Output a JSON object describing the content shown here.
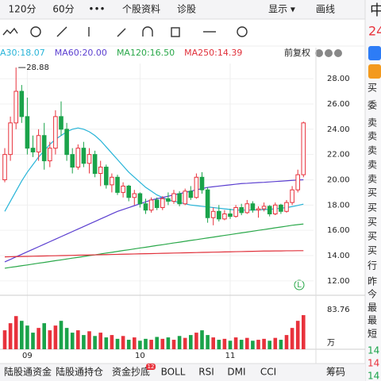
{
  "tabs": [
    "120分",
    "60分",
    "•••",
    "个股资料",
    "诊股",
    "显示 ▾",
    "画线"
  ],
  "header_right": {
    "name": "中",
    "price": "24"
  },
  "adjust": "前复权",
  "badge": "L",
  "bottom_tabs": [
    "陆股通资金",
    "陆股通持仓",
    "资金抄底",
    "BOLL",
    "RSI",
    "DMI",
    "CCI"
  ],
  "bottom_badge": "12",
  "chips": "筹码",
  "side_panel": [
    "买",
    "委",
    "卖",
    "卖",
    "卖",
    "卖",
    "卖",
    "买",
    "买",
    "买",
    "买",
    "买",
    "行",
    "昨",
    "今",
    "最",
    "最",
    "短"
  ],
  "side_prices": [
    {
      "text": "14",
      "color": "#1aa34a"
    },
    {
      "text": "14",
      "color": "#e8323c"
    },
    {
      "text": "14",
      "color": "#1aa34a"
    }
  ],
  "chart_data": {
    "type": "candlestick",
    "up_color": "#e8323c",
    "down_color": "#1aa34a",
    "categories": [
      null,
      null,
      null,
      null,
      "09",
      null,
      null,
      null,
      null,
      null,
      null,
      null,
      null,
      null,
      null,
      null,
      null,
      null,
      null,
      null,
      null,
      null,
      null,
      null,
      "10",
      null,
      null,
      null,
      null,
      null,
      null,
      null,
      null,
      null,
      null,
      null,
      null,
      null,
      null,
      null,
      "11",
      null,
      null,
      null,
      null,
      null,
      null,
      null,
      null,
      null,
      null,
      null,
      null,
      null
    ],
    "open": [
      20,
      22,
      24.5,
      27,
      25,
      22.5,
      22.2,
      23.5,
      21.5,
      22.5,
      25,
      24,
      22,
      21,
      22.5,
      21.3,
      22,
      20.5,
      21,
      19.6,
      20.2,
      19,
      19.5,
      18.6,
      18.9,
      18.1,
      17.6,
      18.4,
      17.8,
      18.5,
      18.3,
      18.9,
      18.1,
      19.1,
      18.6,
      20.2,
      19.2,
      17,
      17.5,
      16.9,
      17.3,
      17.1,
      17.8,
      17.4,
      18.1,
      17.6,
      17.7,
      17.9,
      17.3,
      18,
      17.5,
      18.2,
      19.2,
      20.4
    ],
    "high": [
      22.5,
      25,
      28.88,
      27.5,
      26.5,
      23.5,
      24,
      24.5,
      23,
      25.5,
      26.2,
      24.5,
      22.5,
      22.8,
      23,
      22.5,
      22.3,
      21.5,
      21.2,
      20.5,
      20.4,
      19.8,
      19.6,
      19.2,
      19,
      18.5,
      18.6,
      18.6,
      18.7,
      19,
      19.2,
      19.1,
      19.3,
      19.5,
      20.5,
      20.6,
      19.4,
      17.8,
      18,
      17.6,
      17.7,
      18,
      18.1,
      18.4,
      18.3,
      17.9,
      18.2,
      18,
      18.2,
      18.1,
      18.4,
      19.5,
      20.8,
      24.6
    ],
    "low": [
      19.8,
      21.5,
      24,
      24.5,
      22,
      21.8,
      21.5,
      20.8,
      21,
      22,
      23.5,
      21.5,
      20.5,
      20.8,
      21,
      20.5,
      20.2,
      19.5,
      19.3,
      19,
      18.8,
      18.6,
      18.3,
      18,
      17.8,
      17.3,
      17.4,
      17.6,
      17.6,
      18,
      18.1,
      17.9,
      18,
      18.4,
      18.5,
      18.9,
      16.6,
      16.4,
      16.7,
      16.8,
      16.9,
      17,
      17.2,
      17.3,
      17.4,
      17,
      17.5,
      17.1,
      17.2,
      17.3,
      17.4,
      18,
      19,
      20.2
    ],
    "close": [
      22,
      24.5,
      27,
      25,
      22.5,
      22.2,
      23.5,
      21.5,
      22.5,
      25,
      24,
      22,
      21,
      22.5,
      21.3,
      22,
      20.5,
      21,
      19.6,
      20.2,
      19,
      19.5,
      18.6,
      18.9,
      18.1,
      17.6,
      18.4,
      17.8,
      18.5,
      18.3,
      18.9,
      18.1,
      19.1,
      18.6,
      20.2,
      19.2,
      17,
      17.5,
      16.9,
      17.3,
      17.1,
      17.8,
      17.4,
      18.1,
      17.6,
      17.7,
      17.9,
      17.3,
      18,
      17.5,
      18.2,
      19.2,
      20.4,
      24.5
    ],
    "peak_annotation": {
      "index": 2,
      "text": "28.88"
    },
    "series": [
      {
        "name": "A30:18.07",
        "color": "#27b4d8",
        "values": [
          17.5,
          18.3,
          19.1,
          19.9,
          20.6,
          21.2,
          21.8,
          22.3,
          22.8,
          23.2,
          23.5,
          23.8,
          24.0,
          24.1,
          24.0,
          23.8,
          23.5,
          23.1,
          22.6,
          22.1,
          21.6,
          21.1,
          20.6,
          20.2,
          19.8,
          19.4,
          19.1,
          18.8,
          18.6,
          18.4,
          18.3,
          18.2,
          18.1,
          18.0,
          17.95,
          17.9,
          17.85,
          17.8,
          17.75,
          17.7,
          17.65,
          17.6,
          17.6,
          17.6,
          17.6,
          17.62,
          17.64,
          17.66,
          17.7,
          17.75,
          17.8,
          17.88,
          17.97,
          18.07
        ]
      },
      {
        "name": "MA60:20.00",
        "color": "#5b3fd0",
        "values": [
          13.5,
          13.7,
          13.9,
          14.1,
          14.3,
          14.5,
          14.7,
          14.9,
          15.1,
          15.3,
          15.5,
          15.7,
          15.9,
          16.1,
          16.3,
          16.5,
          16.7,
          16.9,
          17.1,
          17.3,
          17.5,
          17.65,
          17.8,
          17.95,
          18.1,
          18.25,
          18.4,
          18.5,
          18.6,
          18.7,
          18.8,
          18.9,
          19.0,
          19.1,
          19.2,
          19.3,
          19.4,
          19.45,
          19.5,
          19.55,
          19.6,
          19.65,
          19.7,
          19.72,
          19.75,
          19.78,
          19.8,
          19.83,
          19.86,
          19.89,
          19.92,
          19.95,
          19.98,
          20.0
        ]
      },
      {
        "name": "MA120:16.50",
        "color": "#2aa84a",
        "values": [
          13.0,
          13.07,
          13.13,
          13.2,
          13.26,
          13.33,
          13.4,
          13.46,
          13.53,
          13.6,
          13.66,
          13.73,
          13.8,
          13.86,
          13.93,
          14.0,
          14.06,
          14.13,
          14.2,
          14.26,
          14.33,
          14.4,
          14.46,
          14.53,
          14.6,
          14.66,
          14.73,
          14.8,
          14.86,
          14.93,
          15.0,
          15.06,
          15.13,
          15.2,
          15.26,
          15.33,
          15.4,
          15.46,
          15.53,
          15.6,
          15.66,
          15.73,
          15.8,
          15.86,
          15.93,
          16.0,
          16.06,
          16.13,
          16.2,
          16.26,
          16.33,
          16.4,
          16.45,
          16.5
        ]
      },
      {
        "name": "MA250:14.39",
        "color": "#e0303a",
        "values": [
          13.9,
          13.91,
          13.92,
          13.93,
          13.94,
          13.95,
          13.96,
          13.97,
          13.98,
          13.99,
          14.0,
          14.01,
          14.02,
          14.03,
          14.04,
          14.05,
          14.06,
          14.07,
          14.08,
          14.09,
          14.1,
          14.11,
          14.12,
          14.13,
          14.14,
          14.15,
          14.16,
          14.17,
          14.18,
          14.19,
          14.2,
          14.21,
          14.22,
          14.23,
          14.24,
          14.25,
          14.26,
          14.27,
          14.28,
          14.29,
          14.3,
          14.31,
          14.32,
          14.33,
          14.34,
          14.35,
          14.36,
          14.36,
          14.37,
          14.37,
          14.38,
          14.38,
          14.39,
          14.39
        ]
      }
    ],
    "ylim": [
      11.3,
      29.2
    ],
    "yticks": [
      {
        "value": 12,
        "label": "12.00"
      },
      {
        "value": 14,
        "label": "14.00"
      },
      {
        "value": 16,
        "label": "16.00"
      },
      {
        "value": 18,
        "label": "18.00"
      },
      {
        "value": 20,
        "label": "20.00"
      },
      {
        "value": 22,
        "label": "22.00"
      },
      {
        "value": 24,
        "label": "24.00"
      },
      {
        "value": 26,
        "label": "26.00"
      },
      {
        "value": 28,
        "label": "28.00"
      }
    ],
    "volume": [
      40,
      55,
      70,
      60,
      50,
      35,
      45,
      55,
      40,
      50,
      60,
      45,
      35,
      40,
      30,
      38,
      28,
      35,
      25,
      30,
      22,
      28,
      20,
      25,
      18,
      22,
      20,
      26,
      22,
      25,
      20,
      28,
      24,
      30,
      35,
      40,
      30,
      25,
      20,
      22,
      18,
      25,
      20,
      24,
      18,
      20,
      22,
      18,
      24,
      20,
      30,
      45,
      60,
      72
    ],
    "volume_ylim": [
      0,
      83.76
    ],
    "volume_yticks": [
      83.76
    ],
    "volume_unit": "万"
  }
}
